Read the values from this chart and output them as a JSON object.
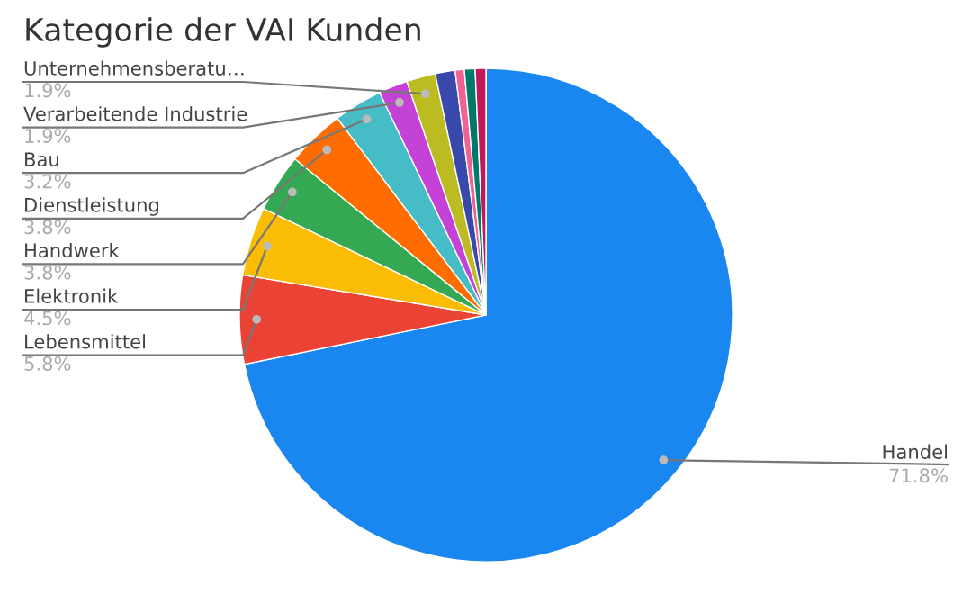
{
  "chart_data": {
    "type": "pie",
    "title": "Kategorie der VAI Kunden",
    "categories": [
      "Handel",
      "Lebensmittel",
      "Elektronik",
      "Handwerk",
      "Dienstleistung",
      "Bau",
      "Verarbeitende Industrie",
      "Unternehmensberatu…",
      null,
      null,
      null,
      null
    ],
    "values": [
      71.8,
      5.8,
      4.5,
      3.8,
      3.8,
      3.2,
      1.9,
      1.9,
      1.3,
      0.6,
      0.7,
      0.7
    ],
    "value_labels": [
      "71.8%",
      "5.8%",
      "4.5%",
      "3.8%",
      "3.8%",
      "3.2%",
      "1.9%",
      "1.9%",
      null,
      null,
      null,
      null
    ],
    "colors": [
      "#1a86f0",
      "#ea4335",
      "#fbbc04",
      "#34a853",
      "#ff6d01",
      "#46bdc6",
      "#c542d7",
      "#bcbc22",
      "#3949ab",
      "#f06292",
      "#00796b",
      "#c2185b"
    ]
  }
}
